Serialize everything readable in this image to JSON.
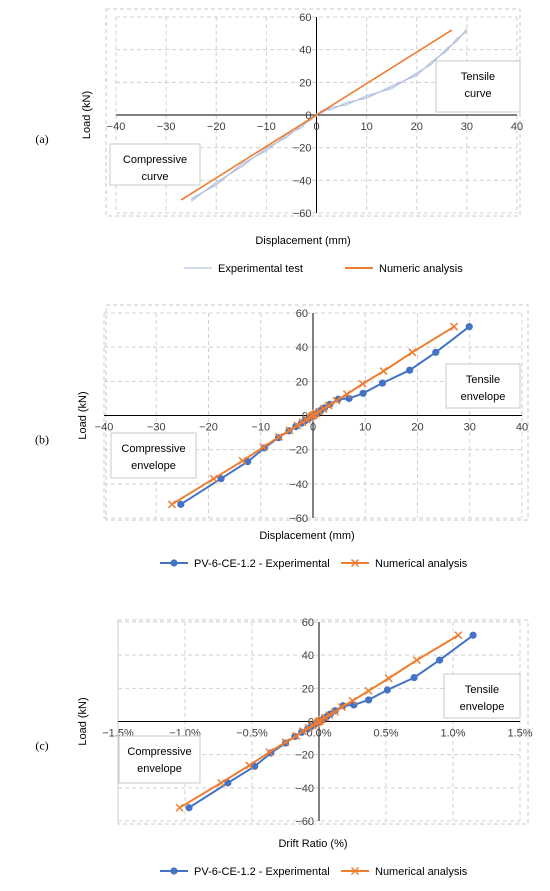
{
  "chart_data": [
    {
      "panel": "(a)",
      "type": "line",
      "xlabel": "Displacement (mm)",
      "ylabel": "Load (kN)",
      "xlim": [
        -40,
        40
      ],
      "ylim": [
        -60,
        60
      ],
      "xticks": [
        "−40",
        "−30",
        "−20",
        "−10",
        "0",
        "10",
        "20",
        "30",
        "40"
      ],
      "yticks": [
        "60",
        "40",
        "20",
        "0",
        "−20",
        "−40",
        "−60"
      ],
      "grid": true,
      "legend_position": "bottom",
      "annotations": [
        {
          "lines": [
            "Tensile",
            "curve"
          ],
          "anchor": "right"
        },
        {
          "lines": [
            "Compressive",
            "curve"
          ],
          "anchor": "left"
        }
      ],
      "series": [
        {
          "name": "Experimental test",
          "color": "#a9b8dc",
          "x": [
            -25,
            -20,
            -15,
            -10,
            -6,
            -3,
            -1,
            0,
            1,
            3,
            6,
            10,
            15,
            20,
            23,
            26,
            28,
            30
          ],
          "y": [
            -52,
            -42,
            -31,
            -21,
            -13,
            -7,
            -2,
            0,
            2,
            4,
            7,
            11,
            17,
            25,
            32,
            40,
            46,
            52
          ]
        },
        {
          "name": "Numeric analysis",
          "color": "#ed7d31",
          "x": [
            -27,
            27
          ],
          "y": [
            -52,
            52
          ]
        }
      ]
    },
    {
      "panel": "(b)",
      "type": "line",
      "xlabel": "Displacement (mm)",
      "ylabel": "Load (kN)",
      "xlim": [
        -40,
        40
      ],
      "ylim": [
        -60,
        60
      ],
      "xticks": [
        "−40",
        "−30",
        "−20",
        "−10",
        "0",
        "10",
        "20",
        "30",
        "40"
      ],
      "yticks": [
        "60",
        "40",
        "20",
        "0",
        "−20",
        "−40",
        "−60"
      ],
      "grid": true,
      "legend_position": "bottom",
      "annotations": [
        {
          "lines": [
            "Tensile",
            "envelope"
          ],
          "anchor": "right"
        },
        {
          "lines": [
            "Compressive",
            "envelope"
          ],
          "anchor": "left"
        }
      ],
      "series": [
        {
          "name": "PV-6-CE-1.2 - Experimental",
          "color": "#4472c4",
          "marker": "circle",
          "x": [
            -25.3,
            -17.6,
            -12.5,
            -9.3,
            -6.6,
            -4.6,
            -3.3,
            -2.2,
            -1.5,
            -0.9,
            -0.5,
            -0.2,
            0,
            0.3,
            0.6,
            1.0,
            1.5,
            2.2,
            3.2,
            4.8,
            6.9,
            9.6,
            13.3,
            18.5,
            23.5,
            29.9
          ],
          "y": [
            -52,
            -37,
            -27,
            -19,
            -13,
            -9,
            -6.5,
            -4.5,
            -3,
            -2,
            -1,
            -0.5,
            0,
            0.5,
            1,
            2,
            3,
            4.5,
            6.5,
            9.5,
            10,
            13,
            19,
            26.5,
            37,
            52
          ]
        },
        {
          "name": "Numerical analysis",
          "color": "#ed7d31",
          "marker": "x",
          "x": [
            -27,
            -19,
            -13.5,
            -9.5,
            -6.5,
            -4.5,
            -3,
            -2,
            -1.2,
            -0.6,
            -0.2,
            0,
            0.2,
            0.6,
            1.2,
            2,
            3,
            4.5,
            6.5,
            9.5,
            13.5,
            19,
            27
          ],
          "y": [
            -52,
            -37,
            -26.5,
            -18.5,
            -12.5,
            -8.7,
            -5.8,
            -3.9,
            -2.3,
            -1.2,
            -0.4,
            0,
            0.4,
            1.2,
            2.3,
            3.9,
            5.8,
            8.7,
            12.5,
            18.5,
            26,
            37,
            52
          ]
        }
      ]
    },
    {
      "panel": "(c)",
      "type": "line",
      "xlabel": "Drift Ratio (%)",
      "ylabel": "Load (kN)",
      "xlim": [
        -1.5,
        1.5
      ],
      "ylim": [
        -60,
        60
      ],
      "xticks": [
        "−1.5%",
        "−1.0%",
        "−0.5%",
        "0.0%",
        "0.5%",
        "1.0%",
        "1.5%"
      ],
      "yticks": [
        "60",
        "40",
        "20",
        "0",
        "−20",
        "−40",
        "−60"
      ],
      "grid": true,
      "legend_position": "bottom",
      "annotations": [
        {
          "lines": [
            "Tensile",
            "envelope"
          ],
          "anchor": "right"
        },
        {
          "lines": [
            "Compressive",
            "envelope"
          ],
          "anchor": "left"
        }
      ],
      "series": [
        {
          "name": "PV-6-CE-1.2 - Experimental",
          "color": "#4472c4",
          "marker": "circle",
          "x": [
            -0.97,
            -0.68,
            -0.48,
            -0.36,
            -0.25,
            -0.18,
            -0.13,
            -0.085,
            -0.058,
            -0.035,
            -0.019,
            -0.008,
            0,
            0.012,
            0.023,
            0.038,
            0.058,
            0.085,
            0.12,
            0.18,
            0.26,
            0.37,
            0.51,
            0.71,
            0.9,
            1.15
          ],
          "y": [
            -52,
            -37,
            -27,
            -19,
            -13,
            -9,
            -6.5,
            -4.5,
            -3,
            -2,
            -1,
            -0.5,
            0,
            0.5,
            1,
            2,
            3,
            4.5,
            6.5,
            9.5,
            10,
            13,
            19,
            26.5,
            37,
            52
          ]
        },
        {
          "name": "Numerical analysis",
          "color": "#ed7d31",
          "marker": "x",
          "x": [
            -1.04,
            -0.73,
            -0.52,
            -0.37,
            -0.25,
            -0.17,
            -0.12,
            -0.077,
            -0.046,
            -0.023,
            -0.008,
            0,
            0.008,
            0.023,
            0.046,
            0.077,
            0.12,
            0.17,
            0.25,
            0.37,
            0.52,
            0.73,
            1.04
          ],
          "y": [
            -52,
            -37,
            -26.5,
            -18.5,
            -12.5,
            -8.7,
            -5.8,
            -3.9,
            -2.3,
            -1.2,
            -0.4,
            0,
            0.4,
            1.2,
            2.3,
            3.9,
            5.8,
            8.7,
            12.5,
            18.5,
            26,
            37,
            52
          ]
        }
      ]
    }
  ]
}
